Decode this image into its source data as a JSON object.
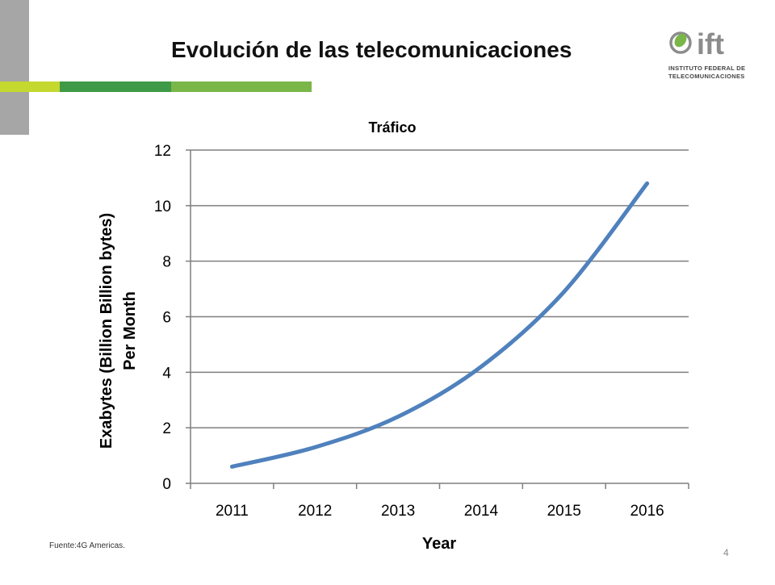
{
  "slide": {
    "title": "Evolución de las telecomunicaciones",
    "source": "Fuente:4G Americas.",
    "page_number": "4"
  },
  "logo": {
    "wordmark": "ift",
    "line1": "INSTITUTO FEDERAL DE",
    "line2": "TELECOMUNICACIONES",
    "colors": {
      "green": "#7ab648",
      "gray": "#8c8c8c"
    }
  },
  "colors": {
    "line": "#4f81bd",
    "grid": "#7f7f7f",
    "accent_lime": "#c4d82e",
    "accent_green": "#3e9a47",
    "accent_light_green": "#7ab648",
    "side_gray": "#a6a6a6"
  },
  "chart_data": {
    "type": "line",
    "title": "Tráfico",
    "xlabel": "Year",
    "ylabel_line1": "Exabytes (Billion Billion bytes)",
    "ylabel_line2": "Per Month",
    "categories": [
      "2011",
      "2012",
      "2013",
      "2014",
      "2015",
      "2016"
    ],
    "yticks": [
      "0",
      "2",
      "4",
      "6",
      "8",
      "10",
      "12"
    ],
    "ylim": [
      0,
      12
    ],
    "grid": true,
    "series": [
      {
        "values": [
          0.6,
          1.3,
          2.4,
          4.2,
          6.9,
          10.8
        ]
      }
    ]
  }
}
